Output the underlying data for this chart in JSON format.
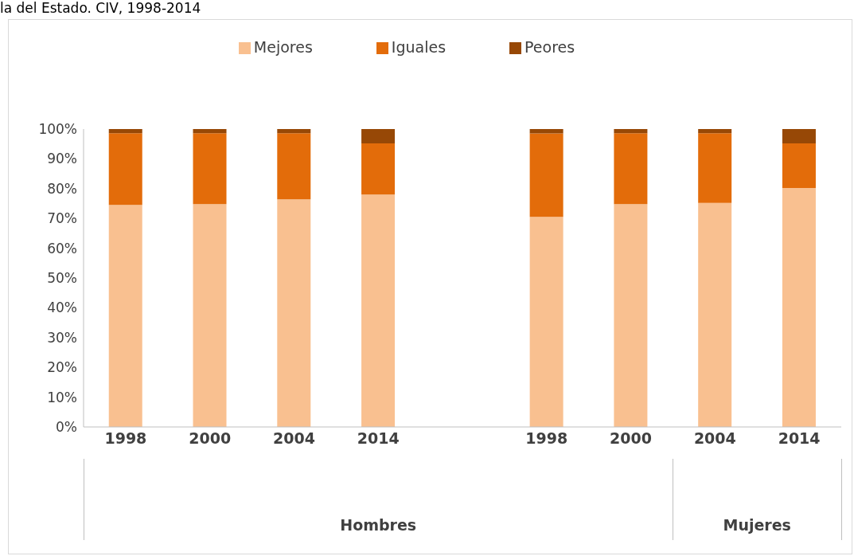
{
  "chart_data": {
    "type": "bar",
    "stacked": true,
    "title": "la del Estado. CIV, 1998-2014",
    "categories": [
      "1998",
      "2000",
      "2004",
      "2014",
      null,
      "1998",
      "2000",
      "2004",
      "2014"
    ],
    "series": [
      {
        "name": "Mejores",
        "color": "#f9c090",
        "values": [
          74.5,
          74.8,
          76.4,
          78.0,
          null,
          70.5,
          74.8,
          75.2,
          80.2
        ]
      },
      {
        "name": "Iguales",
        "color": "#e36c0a",
        "values": [
          24.1,
          23.8,
          22.2,
          17.2,
          null,
          28.0,
          23.8,
          23.4,
          15.0
        ]
      },
      {
        "name": "Peores",
        "color": "#974806",
        "values": [
          1.4,
          1.4,
          1.4,
          4.8,
          null,
          1.5,
          1.4,
          1.4,
          4.8
        ]
      }
    ],
    "annotations": [
      "Hombres",
      "Mujeres"
    ],
    "ylim": [
      0,
      100
    ],
    "yticks": [
      {
        "value": 0,
        "label": "0%"
      },
      {
        "value": 10,
        "label": "10%"
      },
      {
        "value": 20,
        "label": "20%"
      },
      {
        "value": 30,
        "label": "30%"
      },
      {
        "value": 40,
        "label": "40%"
      },
      {
        "value": 50,
        "label": "50%"
      },
      {
        "value": 60,
        "label": "60%"
      },
      {
        "value": 70,
        "label": "70%"
      },
      {
        "value": 80,
        "label": "80%"
      },
      {
        "value": 90,
        "label": "90%"
      },
      {
        "value": 100,
        "label": "100%"
      }
    ],
    "grid": false,
    "legend": "top"
  }
}
